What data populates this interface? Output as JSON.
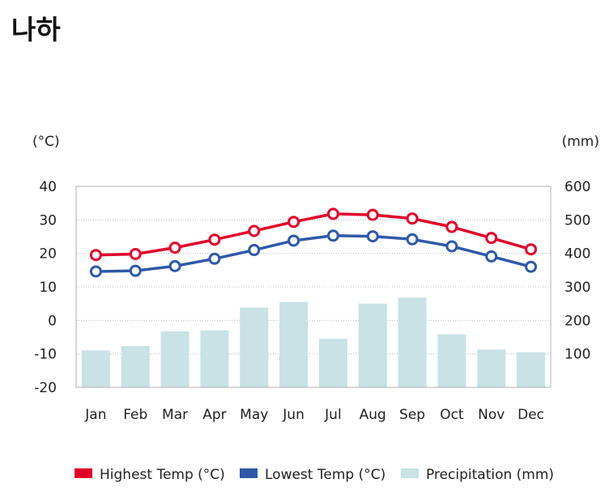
{
  "title": "나하",
  "colors": {
    "high": "#e0002a",
    "low": "#2e59a8",
    "precip": "#c8e2e6",
    "frame": "#b0b0b0"
  },
  "chart_data": {
    "type": "bar+line",
    "title": "나하",
    "left_axis_unit": "(°C)",
    "right_axis_unit": "(mm)",
    "categories": [
      "Jan",
      "Feb",
      "Mar",
      "Apr",
      "May",
      "Jun",
      "Jul",
      "Aug",
      "Sep",
      "Oct",
      "Nov",
      "Dec"
    ],
    "left_ticks": [
      "40",
      "30",
      "20",
      "10",
      "0",
      "-10",
      "-20"
    ],
    "right_ticks": [
      "600",
      "500",
      "400",
      "300",
      "200",
      "100"
    ],
    "left_ylim": [
      -20,
      40
    ],
    "right_ylim": [
      0,
      600
    ],
    "series": [
      {
        "name": "Highest Temp (°C)",
        "axis": "left",
        "type": "line",
        "color_key": "high",
        "values": [
          19.5,
          19.8,
          21.7,
          24.1,
          26.7,
          29.4,
          31.8,
          31.5,
          30.4,
          27.9,
          24.6,
          21.2
        ]
      },
      {
        "name": "Lowest Temp (°C)",
        "axis": "left",
        "type": "line",
        "color_key": "low",
        "values": [
          14.6,
          14.8,
          16.2,
          18.4,
          21.0,
          23.8,
          25.3,
          25.1,
          24.2,
          22.1,
          19.1,
          16.0
        ]
      },
      {
        "name": "Precipitation (mm)",
        "axis": "right",
        "type": "bar",
        "color_key": "precip",
        "values": [
          110,
          123,
          167,
          170,
          238,
          255,
          145,
          250,
          268,
          158,
          113,
          105
        ]
      }
    ],
    "legend_position": "bottom-center",
    "legend": [
      "Highest Temp (°C)",
      "Lowest Temp (°C)",
      "Precipitation (mm)"
    ]
  }
}
